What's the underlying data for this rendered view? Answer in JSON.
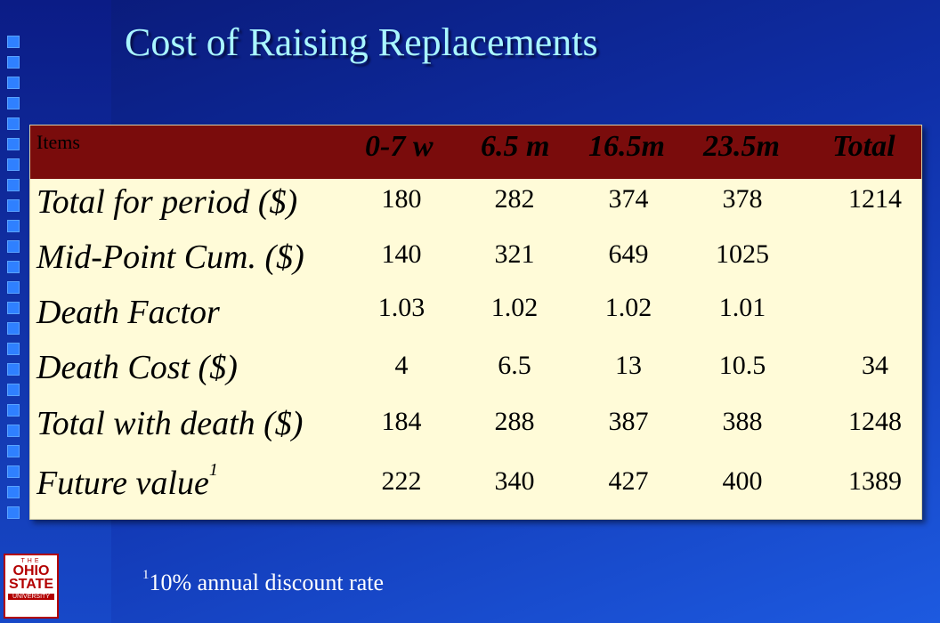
{
  "title": "Cost of Raising Replacements",
  "table": {
    "headers": [
      "Items",
      "0-7 w",
      "6.5 m",
      "16.5m",
      "23.5m",
      "Total"
    ],
    "rows": [
      {
        "label": "Total for period ($)",
        "sup": "",
        "values": [
          "180",
          "282",
          "374",
          "378",
          "1214"
        ]
      },
      {
        "label": "Mid-Point Cum. ($)",
        "sup": "",
        "values": [
          "140",
          "321",
          "649",
          "1025",
          ""
        ]
      },
      {
        "label": "Death Factor",
        "sup": "",
        "values": [
          "1.03",
          "1.02",
          "1.02",
          "1.01",
          ""
        ]
      },
      {
        "label": "Death Cost ($)",
        "sup": "",
        "values": [
          "4",
          "6.5",
          "13",
          "10.5",
          "34"
        ]
      },
      {
        "label": "Total with death ($)",
        "sup": "",
        "values": [
          "184",
          "288",
          "387",
          "388",
          "1248"
        ]
      },
      {
        "label": "Future value",
        "sup": "1",
        "values": [
          "222",
          "340",
          "427",
          "400",
          "1389"
        ]
      }
    ]
  },
  "footnote": {
    "mark": "1",
    "text": "10% annual discount rate"
  },
  "logo": {
    "line1": "THE",
    "line2": "OHIO",
    "line3": "STATE",
    "line4": "UNIVERSITY"
  },
  "colors": {
    "title": "#a9f6ff",
    "header_bg": "#7a0c0c",
    "table_bg": "#fffbd8",
    "background": "#1233b0"
  }
}
